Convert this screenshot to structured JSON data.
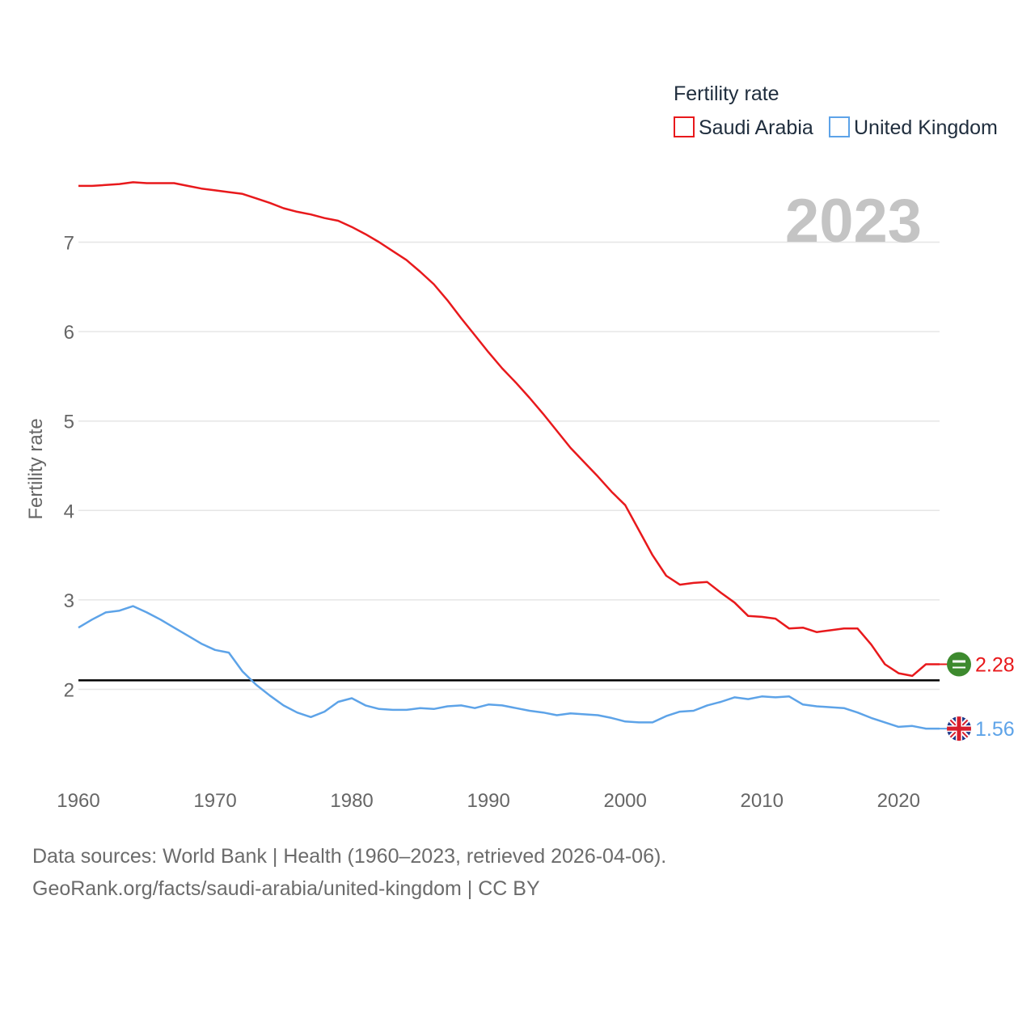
{
  "chart_data": {
    "type": "line",
    "title": "Fertility rate",
    "year_label": "2023",
    "ylabel": "Fertility rate",
    "xlabel": "",
    "xlim": [
      1960,
      2023
    ],
    "ylim": [
      1.1,
      7.9
    ],
    "x_ticks": [
      1960,
      1970,
      1980,
      1990,
      2000,
      2010,
      2020
    ],
    "y_ticks": [
      2,
      3,
      4,
      5,
      6,
      7
    ],
    "reference_line": 2.1,
    "grid": true,
    "legend_position": "top-right",
    "series": [
      {
        "name": "Saudi Arabia",
        "color": "#e8191c",
        "flag_icon": "saudi-arabia-flag-icon",
        "end_value": 2.28,
        "end_label": "2.28",
        "x": [
          1960,
          1961,
          1962,
          1963,
          1964,
          1965,
          1966,
          1967,
          1968,
          1969,
          1970,
          1971,
          1972,
          1973,
          1974,
          1975,
          1976,
          1977,
          1978,
          1979,
          1980,
          1981,
          1982,
          1983,
          1984,
          1985,
          1986,
          1987,
          1988,
          1989,
          1990,
          1991,
          1992,
          1993,
          1994,
          1995,
          1996,
          1997,
          1998,
          1999,
          2000,
          2001,
          2002,
          2003,
          2004,
          2005,
          2006,
          2007,
          2008,
          2009,
          2010,
          2011,
          2012,
          2013,
          2014,
          2015,
          2016,
          2017,
          2018,
          2019,
          2020,
          2021,
          2022,
          2023
        ],
        "values": [
          7.63,
          7.63,
          7.64,
          7.65,
          7.67,
          7.66,
          7.66,
          7.66,
          7.63,
          7.6,
          7.58,
          7.56,
          7.54,
          7.49,
          7.44,
          7.38,
          7.34,
          7.31,
          7.27,
          7.24,
          7.17,
          7.09,
          7.0,
          6.9,
          6.8,
          6.67,
          6.53,
          6.35,
          6.15,
          5.96,
          5.77,
          5.59,
          5.43,
          5.26,
          5.08,
          4.89,
          4.7,
          4.54,
          4.38,
          4.21,
          4.06,
          3.78,
          3.5,
          3.27,
          3.17,
          3.19,
          3.2,
          3.08,
          2.97,
          2.82,
          2.81,
          2.79,
          2.68,
          2.69,
          2.64,
          2.66,
          2.68,
          2.68,
          2.5,
          2.28,
          2.18,
          2.15,
          2.28,
          2.28
        ]
      },
      {
        "name": "United Kingdom",
        "color": "#5da3e8",
        "flag_icon": "united-kingdom-flag-icon",
        "end_value": 1.56,
        "end_label": "1.56",
        "x": [
          1960,
          1961,
          1962,
          1963,
          1964,
          1965,
          1966,
          1967,
          1968,
          1969,
          1970,
          1971,
          1972,
          1973,
          1974,
          1975,
          1976,
          1977,
          1978,
          1979,
          1980,
          1981,
          1982,
          1983,
          1984,
          1985,
          1986,
          1987,
          1988,
          1989,
          1990,
          1991,
          1992,
          1993,
          1994,
          1995,
          1996,
          1997,
          1998,
          1999,
          2000,
          2001,
          2002,
          2003,
          2004,
          2005,
          2006,
          2007,
          2008,
          2009,
          2010,
          2011,
          2012,
          2013,
          2014,
          2015,
          2016,
          2017,
          2018,
          2019,
          2020,
          2021,
          2022,
          2023
        ],
        "values": [
          2.69,
          2.78,
          2.86,
          2.88,
          2.93,
          2.86,
          2.78,
          2.69,
          2.6,
          2.51,
          2.44,
          2.41,
          2.2,
          2.05,
          1.93,
          1.82,
          1.74,
          1.69,
          1.75,
          1.86,
          1.9,
          1.82,
          1.78,
          1.77,
          1.77,
          1.79,
          1.78,
          1.81,
          1.82,
          1.79,
          1.83,
          1.82,
          1.79,
          1.76,
          1.74,
          1.71,
          1.73,
          1.72,
          1.71,
          1.68,
          1.64,
          1.63,
          1.63,
          1.7,
          1.75,
          1.76,
          1.82,
          1.86,
          1.91,
          1.89,
          1.92,
          1.91,
          1.92,
          1.83,
          1.81,
          1.8,
          1.79,
          1.74,
          1.68,
          1.63,
          1.58,
          1.59,
          1.56,
          1.56
        ]
      }
    ]
  },
  "source": {
    "line1": "Data sources: World Bank | Health (1960–2023, retrieved 2026-04-06).",
    "line2": "GeoRank.org/facts/saudi-arabia/united-kingdom | CC BY"
  }
}
